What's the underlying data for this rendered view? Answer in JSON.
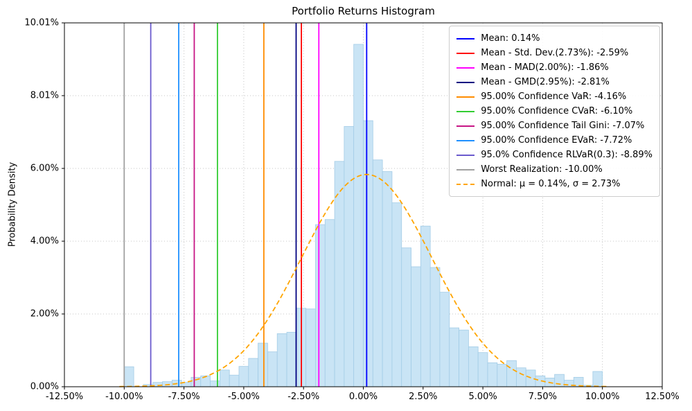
{
  "chart_data": {
    "type": "bar",
    "subtype": "histogram-with-density",
    "title": "Portfolio Returns Histogram",
    "xlabel": "",
    "ylabel": "Probability Density",
    "xlim": [
      -12.5,
      12.5
    ],
    "ylim": [
      0,
      10.01
    ],
    "grid": "dotted",
    "legend_position": "upper-right",
    "x_ticks": [
      {
        "v": -12.5,
        "label": "-12.50%"
      },
      {
        "v": -10.0,
        "label": "-10.00%"
      },
      {
        "v": -7.5,
        "label": "-7.50%"
      },
      {
        "v": -5.0,
        "label": "-5.00%"
      },
      {
        "v": -2.5,
        "label": "-2.50%"
      },
      {
        "v": 0.0,
        "label": "0.00%"
      },
      {
        "v": 2.5,
        "label": "2.50%"
      },
      {
        "v": 5.0,
        "label": "5.00%"
      },
      {
        "v": 7.5,
        "label": "7.50%"
      },
      {
        "v": 10.0,
        "label": "10.00%"
      },
      {
        "v": 12.5,
        "label": "12.50%"
      }
    ],
    "y_ticks": [
      {
        "v": 0.0,
        "label": "0.00%"
      },
      {
        "v": 2.002,
        "label": "2.00%"
      },
      {
        "v": 4.004,
        "label": "4.00%"
      },
      {
        "v": 6.006,
        "label": "6.00%"
      },
      {
        "v": 8.008,
        "label": "8.01%"
      },
      {
        "v": 10.01,
        "label": "10.01%"
      }
    ],
    "histogram": {
      "bin_width": 0.4,
      "bar_color": "#c9e4f5",
      "bar_edge_color": "#a3cce6",
      "centers": [
        -9.8,
        -9.4,
        -9.0,
        -8.6,
        -8.2,
        -7.8,
        -7.4,
        -7.0,
        -6.6,
        -6.2,
        -5.8,
        -5.4,
        -5.0,
        -4.6,
        -4.2,
        -3.8,
        -3.4,
        -3.0,
        -2.6,
        -2.2,
        -1.8,
        -1.4,
        -1.0,
        -0.6,
        -0.2,
        0.2,
        0.6,
        1.0,
        1.4,
        1.8,
        2.2,
        2.6,
        3.0,
        3.4,
        3.8,
        4.2,
        4.6,
        5.0,
        5.4,
        5.8,
        6.2,
        6.6,
        7.0,
        7.4,
        7.8,
        8.2,
        8.6,
        9.0,
        9.4,
        9.8
      ],
      "heights": [
        0.55,
        0.0,
        0.06,
        0.12,
        0.14,
        0.18,
        0.12,
        0.26,
        0.3,
        0.16,
        0.46,
        0.32,
        0.56,
        0.78,
        1.2,
        0.96,
        1.46,
        1.5,
        2.16,
        2.14,
        4.46,
        4.6,
        6.2,
        7.16,
        9.42,
        7.32,
        6.24,
        5.92,
        5.06,
        3.82,
        3.3,
        4.42,
        3.28,
        2.6,
        1.62,
        1.56,
        1.1,
        0.94,
        0.66,
        0.62,
        0.72,
        0.52,
        0.46,
        0.3,
        0.24,
        0.34,
        0.18,
        0.26,
        0.04,
        0.42
      ]
    },
    "vlines": [
      {
        "name": "mean",
        "x": 0.14,
        "color": "#0000ff",
        "label": "Mean: 0.14%"
      },
      {
        "name": "std-dev",
        "x": -2.59,
        "color": "#ff0000",
        "label": "Mean - Std. Dev.(2.73%): -2.59%"
      },
      {
        "name": "mad",
        "x": -1.86,
        "color": "#ff00ff",
        "label": "Mean - MAD(2.00%): -1.86%"
      },
      {
        "name": "gmd",
        "x": -2.81,
        "color": "#000080",
        "label": "Mean - GMD(2.95%): -2.81%"
      },
      {
        "name": "var",
        "x": -4.16,
        "color": "#ff8c00",
        "label": "95.00% Confidence VaR: -4.16%"
      },
      {
        "name": "cvar",
        "x": -6.1,
        "color": "#32cd32",
        "label": "95.00% Confidence CVaR: -6.10%"
      },
      {
        "name": "tail-gini",
        "x": -7.07,
        "color": "#c71585",
        "label": "95.00% Confidence Tail Gini: -7.07%"
      },
      {
        "name": "evar",
        "x": -7.72,
        "color": "#1e90ff",
        "label": "95.00% Confidence EVaR: -7.72%"
      },
      {
        "name": "rlvar",
        "x": -8.89,
        "color": "#6a5acd",
        "label": "95.0% Confidence RLVaR(0.3): -8.89%"
      },
      {
        "name": "worst",
        "x": -10.0,
        "color": "#a0a0a0",
        "label": "Worst Realization: -10.00%"
      }
    ],
    "normal_curve": {
      "mu": 0.14,
      "sigma": 2.73,
      "peak": 5.84,
      "color": "#ffa500",
      "dash": true,
      "label": "Normal: μ = 0.14%, σ = 2.73%"
    }
  }
}
